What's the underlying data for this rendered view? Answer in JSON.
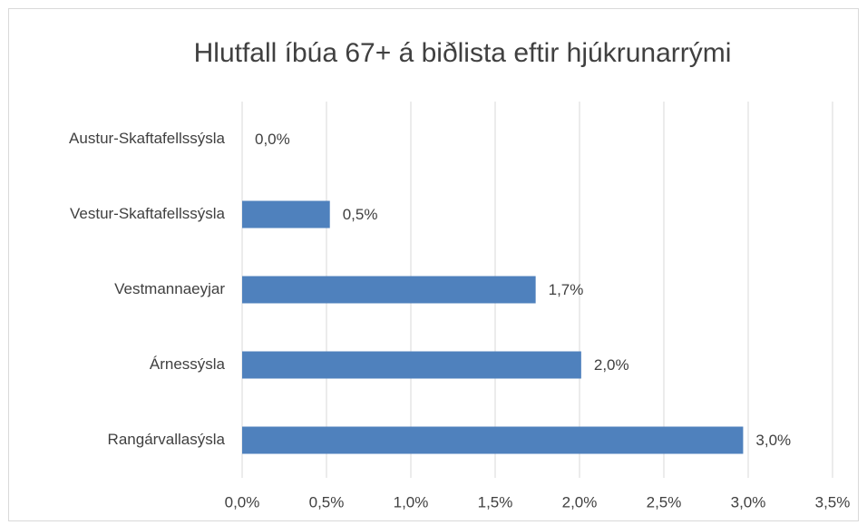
{
  "chart_data": {
    "type": "bar",
    "orientation": "horizontal",
    "title": "Hlutfall íbúa 67+ á biðlista eftir hjúkrunarrými",
    "categories": [
      "Austur-Skaftafellssýsla",
      "Vestur-Skaftafellssýsla",
      "Vestmannaeyjar",
      "Árnessýsla",
      "Rangárvallasýsla"
    ],
    "values": [
      0.0,
      0.52,
      1.74,
      2.01,
      2.97
    ],
    "value_labels": [
      "0,0%",
      "0,5%",
      "1,7%",
      "2,0%",
      "3,0%"
    ],
    "color": "#4f81bd",
    "xlim": [
      0,
      3.5
    ],
    "xticks": [
      {
        "value": 0,
        "label": "0,0%"
      },
      {
        "value": 0.5,
        "label": "0,5%"
      },
      {
        "value": 1,
        "label": "1,0%"
      },
      {
        "value": 1.5,
        "label": "1,5%"
      },
      {
        "value": 2,
        "label": "2,0%"
      },
      {
        "value": 2.5,
        "label": "2,5%"
      },
      {
        "value": 3,
        "label": "3,0%"
      },
      {
        "value": 3.5,
        "label": "3,5%"
      }
    ],
    "grid": true
  }
}
